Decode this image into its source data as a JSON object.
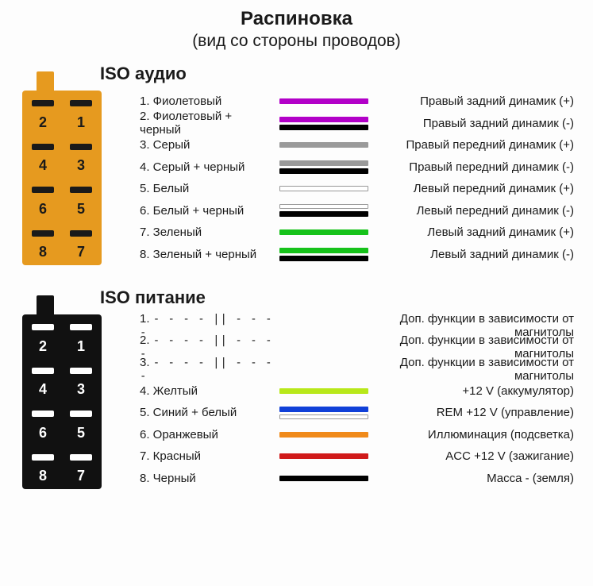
{
  "title": "Распиновка",
  "subtitle": "(вид со стороны проводов)",
  "audio": {
    "label": "ISO аудио",
    "connector_color": "#e69a1f",
    "pin_order": [
      "2",
      "1",
      "4",
      "3",
      "6",
      "5",
      "8",
      "7"
    ],
    "rows": [
      {
        "num": "1.",
        "wire": "Фиолетовый",
        "colors": [
          "#b200c8"
        ],
        "func": "Правый задний динамик (+)"
      },
      {
        "num": "2.",
        "wire": "Фиолетовый + черный",
        "colors": [
          "#b200c8",
          "#000000"
        ],
        "func": "Правый задний динамик (-)"
      },
      {
        "num": "3.",
        "wire": "Серый",
        "colors": [
          "#9a9a9a"
        ],
        "func": "Правый передний динамик (+)"
      },
      {
        "num": "4.",
        "wire": "Серый + черный",
        "colors": [
          "#9a9a9a",
          "#000000"
        ],
        "func": "Правый передний динамик (-)"
      },
      {
        "num": "5.",
        "wire": "Белый",
        "colors": [
          "#ffffff"
        ],
        "border": true,
        "func": "Левый передний динамик (+)"
      },
      {
        "num": "6.",
        "wire": "Белый + черный",
        "colors": [
          "#ffffff",
          "#000000"
        ],
        "border": true,
        "func": "Левый передний динамик (-)"
      },
      {
        "num": "7.",
        "wire": "Зеленый",
        "colors": [
          "#16c21a"
        ],
        "func": "Левый задний динамик (+)"
      },
      {
        "num": "8.",
        "wire": "Зеленый + черный",
        "colors": [
          "#16c21a",
          "#000000"
        ],
        "func": "Левый задний динамик (-)"
      }
    ]
  },
  "power": {
    "label": "ISO питание",
    "connector_color": "#111111",
    "pin_order": [
      "2",
      "1",
      "4",
      "3",
      "6",
      "5",
      "8",
      "7"
    ],
    "rows": [
      {
        "num": "1.",
        "wire_dashed": "- - - - || - - - -",
        "colors": [],
        "func": "Доп. функции в зависимости от магнитолы"
      },
      {
        "num": "2.",
        "wire_dashed": "- - - - || - - - -",
        "colors": [],
        "func": "Доп. функции в зависимости от магнитолы"
      },
      {
        "num": "3.",
        "wire_dashed": "- - - - || - - - -",
        "colors": [],
        "func": "Доп. функции в зависимости от магнитолы"
      },
      {
        "num": "4.",
        "wire": "Желтый",
        "colors": [
          "#b8e81a"
        ],
        "func": "+12 V (аккумулятор)"
      },
      {
        "num": "5.",
        "wire": "Синий + белый",
        "colors": [
          "#1040d8",
          "#ffffff"
        ],
        "border": true,
        "func": "REM +12 V (управление)"
      },
      {
        "num": "6.",
        "wire": "Оранжевый",
        "colors": [
          "#f08a1a"
        ],
        "func": "Иллюминация (подсветка)"
      },
      {
        "num": "7.",
        "wire": "Красный",
        "colors": [
          "#d01a1a"
        ],
        "func": "ACC +12 V (зажигание)"
      },
      {
        "num": "8.",
        "wire": "Черный",
        "colors": [
          "#000000"
        ],
        "func": "Масса - (земля)"
      }
    ]
  }
}
